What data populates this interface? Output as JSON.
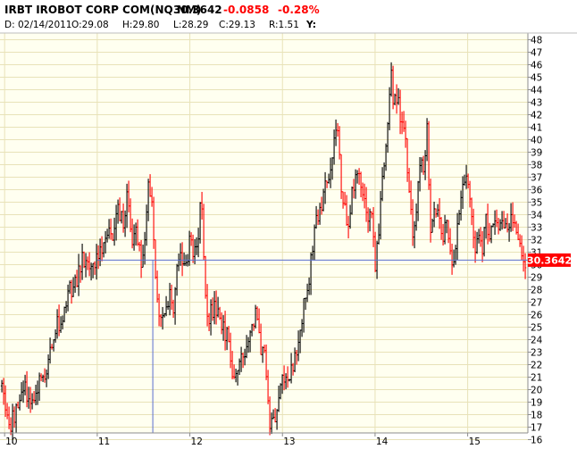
{
  "header": {
    "symbol": "IRBT IROBOT CORP COM(NQ NM)",
    "last": "30.3642",
    "change": "-0.0858",
    "change_pct": "-0.28%",
    "date": "D: 02/14/2011",
    "open": "O:29.08",
    "high": "H:29.80",
    "low": "L:28.29",
    "close": "C:29.13",
    "r_value": "R:1.51",
    "y_label": "Y:"
  },
  "price_badge": "30.3642",
  "colors": {
    "background": "#FFFFF0",
    "grid": "#E8E2B8",
    "up_bar": "#000000",
    "down_bar": "#FF0000",
    "crosshair": "#5A6ECF",
    "badge_bg": "#FF0000",
    "badge_text": "#FFFFFF",
    "change_text": "#FF0000"
  },
  "chart_data": {
    "type": "ohlc",
    "title": "IRBT IROBOT CORP COM(NQ NM)",
    "xlabel": "",
    "ylabel": "",
    "x_ticks": [
      "10",
      "11",
      "12",
      "13",
      "14",
      "15"
    ],
    "y_ticks": [
      16,
      17,
      18,
      19,
      20,
      21,
      22,
      23,
      24,
      25,
      26,
      27,
      28,
      29,
      30,
      31,
      32,
      33,
      34,
      35,
      36,
      37,
      38,
      39,
      40,
      41,
      42,
      43,
      44,
      45,
      46,
      47,
      48
    ],
    "ylim": [
      16,
      48
    ],
    "xlim": [
      9.95,
      15.65
    ],
    "grid": true,
    "crosshair_price": 30.3642,
    "crosshair_x": 11.6,
    "path": [
      [
        9.97,
        20.3
      ],
      [
        10.05,
        17.2
      ],
      [
        10.12,
        18.2
      ],
      [
        10.2,
        20.3
      ],
      [
        10.28,
        19.1
      ],
      [
        10.36,
        20.6
      ],
      [
        10.44,
        21.3
      ],
      [
        10.52,
        24.5
      ],
      [
        10.6,
        25.5
      ],
      [
        10.68,
        27.8
      ],
      [
        10.76,
        28.3
      ],
      [
        10.84,
        30.5
      ],
      [
        10.92,
        29.3
      ],
      [
        11.0,
        30.2
      ],
      [
        11.08,
        31.8
      ],
      [
        11.12,
        33.5
      ],
      [
        11.18,
        32.0
      ],
      [
        11.22,
        34.5
      ],
      [
        11.28,
        33.2
      ],
      [
        11.33,
        36.4
      ],
      [
        11.37,
        30.8
      ],
      [
        11.42,
        33.0
      ],
      [
        11.47,
        30.4
      ],
      [
        11.52,
        31.7
      ],
      [
        11.55,
        36.5
      ],
      [
        11.6,
        35.2
      ],
      [
        11.62,
        29.5
      ],
      [
        11.66,
        26.0
      ],
      [
        11.72,
        25.4
      ],
      [
        11.78,
        27.7
      ],
      [
        11.83,
        26.2
      ],
      [
        11.86,
        30.1
      ],
      [
        11.9,
        31.3
      ],
      [
        11.95,
        29.7
      ],
      [
        12.0,
        32.2
      ],
      [
        12.04,
        30.3
      ],
      [
        12.08,
        31.5
      ],
      [
        12.12,
        35.5
      ],
      [
        12.16,
        28.7
      ],
      [
        12.2,
        25.5
      ],
      [
        12.24,
        26.3
      ],
      [
        12.28,
        26.4
      ],
      [
        12.32,
        25.3
      ],
      [
        12.36,
        25.0
      ],
      [
        12.4,
        24.4
      ],
      [
        12.44,
        22.0
      ],
      [
        12.48,
        21.1
      ],
      [
        12.52,
        21.3
      ],
      [
        12.56,
        23.3
      ],
      [
        12.6,
        23.4
      ],
      [
        12.64,
        24.6
      ],
      [
        12.68,
        25.8
      ],
      [
        12.72,
        25.8
      ],
      [
        12.76,
        23.6
      ],
      [
        12.8,
        23.2
      ],
      [
        12.83,
        20.3
      ],
      [
        12.87,
        17.0
      ],
      [
        12.92,
        18.0
      ],
      [
        12.96,
        19.2
      ],
      [
        13.0,
        20.7
      ],
      [
        13.04,
        20.5
      ],
      [
        13.08,
        21.4
      ],
      [
        13.12,
        22.3
      ],
      [
        13.16,
        22.9
      ],
      [
        13.2,
        25.4
      ],
      [
        13.24,
        27.3
      ],
      [
        13.28,
        28.7
      ],
      [
        13.32,
        31.0
      ],
      [
        13.36,
        33.2
      ],
      [
        13.4,
        33.7
      ],
      [
        13.44,
        35.5
      ],
      [
        13.48,
        36.3
      ],
      [
        13.52,
        37.5
      ],
      [
        13.56,
        40.3
      ],
      [
        13.6,
        40.2
      ],
      [
        13.63,
        36.5
      ],
      [
        13.67,
        34.7
      ],
      [
        13.7,
        33.2
      ],
      [
        13.74,
        35.0
      ],
      [
        13.78,
        36.8
      ],
      [
        13.82,
        37.2
      ],
      [
        13.86,
        35.2
      ],
      [
        13.88,
        36.0
      ],
      [
        13.92,
        34.3
      ],
      [
        13.96,
        33.8
      ],
      [
        14.0,
        29.6
      ],
      [
        14.04,
        33.0
      ],
      [
        14.07,
        35.9
      ],
      [
        14.1,
        37.3
      ],
      [
        14.14,
        41.2
      ],
      [
        14.17,
        45.3
      ],
      [
        14.2,
        42.7
      ],
      [
        14.24,
        43.5
      ],
      [
        14.28,
        41.0
      ],
      [
        14.32,
        40.7
      ],
      [
        14.36,
        36.5
      ],
      [
        14.4,
        32.7
      ],
      [
        14.44,
        34.0
      ],
      [
        14.48,
        37.7
      ],
      [
        14.52,
        37.8
      ],
      [
        14.56,
        40.8
      ],
      [
        14.6,
        33.2
      ],
      [
        14.64,
        34.5
      ],
      [
        14.68,
        35.0
      ],
      [
        14.72,
        32.0
      ],
      [
        14.76,
        33.5
      ],
      [
        14.8,
        32.2
      ],
      [
        14.84,
        30.3
      ],
      [
        14.88,
        32.6
      ],
      [
        14.92,
        34.3
      ],
      [
        14.96,
        36.8
      ],
      [
        15.0,
        36.2
      ],
      [
        15.04,
        34.0
      ],
      [
        15.08,
        31.6
      ],
      [
        15.12,
        32.3
      ],
      [
        15.16,
        30.9
      ],
      [
        15.2,
        33.8
      ],
      [
        15.24,
        32.3
      ],
      [
        15.28,
        34.2
      ],
      [
        15.32,
        32.8
      ],
      [
        15.36,
        33.5
      ],
      [
        15.4,
        32.3
      ],
      [
        15.44,
        33.2
      ],
      [
        15.48,
        33.8
      ],
      [
        15.52,
        32.3
      ],
      [
        15.56,
        31.7
      ],
      [
        15.6,
        30.5
      ],
      [
        15.63,
        30.3
      ]
    ],
    "volatility": 1.1,
    "series": [
      {
        "direction": "up",
        "color": "#000000"
      },
      {
        "direction": "down",
        "color": "#FF0000"
      }
    ]
  }
}
